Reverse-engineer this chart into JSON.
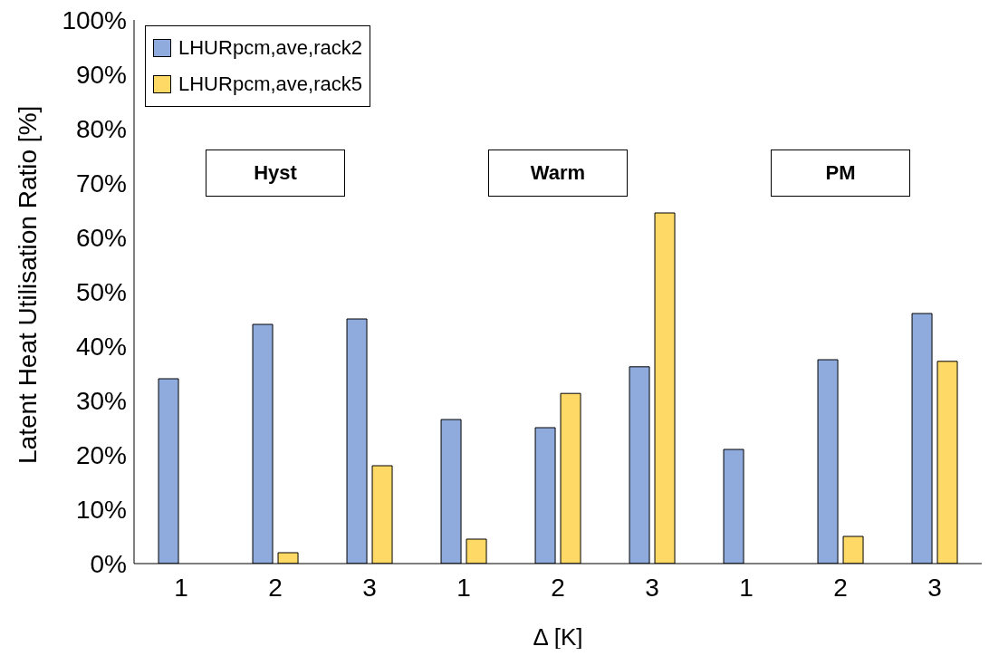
{
  "chart_data": {
    "type": "bar",
    "ylabel": "Latent Heat Utilisation Ratio [%]",
    "xlabel": "Δ [K]",
    "categories": [
      "1",
      "2",
      "3",
      "1",
      "2",
      "3",
      "1",
      "2",
      "3"
    ],
    "series": [
      {
        "name": "LHURpcm,ave,rack2",
        "color": "#8faadc",
        "values": [
          34,
          44,
          45,
          26.5,
          25,
          36.2,
          21,
          37.5,
          46
        ]
      },
      {
        "name": "LHURpcm,ave,rack5",
        "color": "#ffd966",
        "values": [
          0,
          2,
          18,
          4.5,
          31.3,
          64.5,
          0,
          5,
          37.2
        ]
      }
    ],
    "ylim": [
      0,
      100
    ],
    "yticks": [
      {
        "value": 0,
        "label": "0%"
      },
      {
        "value": 10,
        "label": "10%"
      },
      {
        "value": 20,
        "label": "20%"
      },
      {
        "value": 30,
        "label": "30%"
      },
      {
        "value": 40,
        "label": "40%"
      },
      {
        "value": 50,
        "label": "50%"
      },
      {
        "value": 60,
        "label": "60%"
      },
      {
        "value": 70,
        "label": "70%"
      },
      {
        "value": 80,
        "label": "80%"
      },
      {
        "value": 90,
        "label": "90%"
      },
      {
        "value": 100,
        "label": "100%"
      }
    ],
    "annotations": [
      "Hyst",
      "Warm",
      "PM"
    ],
    "grid": false,
    "legend": "top left"
  }
}
